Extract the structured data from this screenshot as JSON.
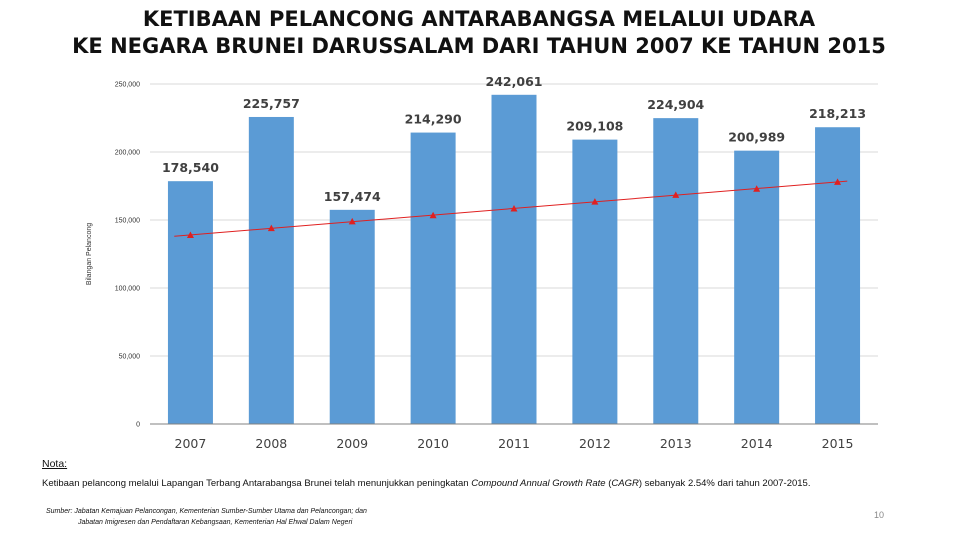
{
  "title_line1": "KETIBAAN PELANCONG ANTARABANGSA MELALUI UDARA",
  "title_line2": "KE NEGARA BRUNEI DARUSSALAM DARI TAHUN 2007 KE TAHUN 2015",
  "note": {
    "heading": "Nota:",
    "text_before": "Ketibaan pelancong melalui Lapangan Terbang Antarabangsa Brunei telah menunjukkan peningkatan ",
    "text_italic": "Compound Annual Growth Rate",
    "text_paren_open": " (",
    "text_italic_abbr": "CAGR",
    "text_after": ") sebanyak 2.54% dari tahun 2007-2015."
  },
  "source_line1": "Sumber:  Jabatan Kemajuan Pelancongan, Kementerian Sumber-Sumber Utama dan Pelancongan; dan",
  "source_line2": "Jabatan Imigresen dan Pendaftaran Kebangsaan, Kementerian Hal Ehwal Dalam Negeri",
  "page_number": "10",
  "colors": {
    "bar": "#5b9bd5",
    "trend": "#e02020",
    "grid": "#d9d9d9",
    "axis": "#808080"
  },
  "chart_data": {
    "type": "bar",
    "categories": [
      "2007",
      "2008",
      "2009",
      "2010",
      "2011",
      "2012",
      "2013",
      "2014",
      "2015"
    ],
    "values": [
      178540,
      225757,
      157474,
      214290,
      242061,
      209108,
      224904,
      200989,
      218213
    ],
    "value_labels": [
      "178,540",
      "225,757",
      "157,474",
      "214,290",
      "242,061",
      "209,108",
      "224,904",
      "200,989",
      "218,213"
    ],
    "ylabel": "Bilangan Pelancong",
    "xlabel": "",
    "ylim": [
      0,
      250000
    ],
    "yticks": [
      0,
      50000,
      100000,
      150000,
      200000,
      250000
    ],
    "ytick_labels": [
      "0",
      "50,000",
      "100,000",
      "150,000",
      "200,000",
      "250,000"
    ],
    "trendline": {
      "type": "linear",
      "marker": "triangle",
      "values": [
        139000,
        144000,
        149000,
        153500,
        158500,
        163500,
        168500,
        173000,
        178000
      ]
    },
    "grid": true,
    "legend": "none"
  }
}
